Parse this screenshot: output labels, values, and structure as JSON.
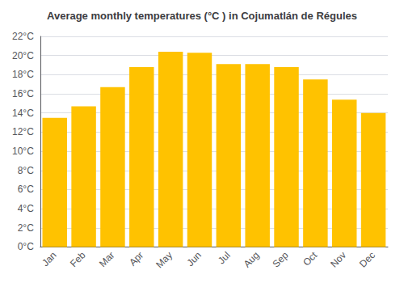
{
  "chart_data": {
    "type": "bar",
    "title": "Average monthly temperatures (°C ) in Cojumatlán de Régules",
    "categories": [
      "Jan",
      "Feb",
      "Mar",
      "Apr",
      "May",
      "Jun",
      "Jul",
      "Aug",
      "Sep",
      "Oct",
      "Nov",
      "Dec"
    ],
    "values": [
      13.5,
      14.7,
      16.7,
      18.8,
      20.4,
      20.3,
      19.1,
      19.1,
      18.8,
      17.5,
      15.4,
      14.0
    ],
    "color": "#FFC200",
    "ylim": [
      0,
      22
    ],
    "yticks": [
      {
        "value": 0,
        "label": "0°C"
      },
      {
        "value": 2,
        "label": "2°C"
      },
      {
        "value": 4,
        "label": "4°C"
      },
      {
        "value": 6,
        "label": "6°C"
      },
      {
        "value": 8,
        "label": "8°C"
      },
      {
        "value": 10,
        "label": "10°C"
      },
      {
        "value": 12,
        "label": "12°C"
      },
      {
        "value": 14,
        "label": "14°C"
      },
      {
        "value": 16,
        "label": "16°C"
      },
      {
        "value": 18,
        "label": "18°C"
      },
      {
        "value": 20,
        "label": "20°C"
      },
      {
        "value": 22,
        "label": "22°C"
      }
    ],
    "grid": true
  }
}
